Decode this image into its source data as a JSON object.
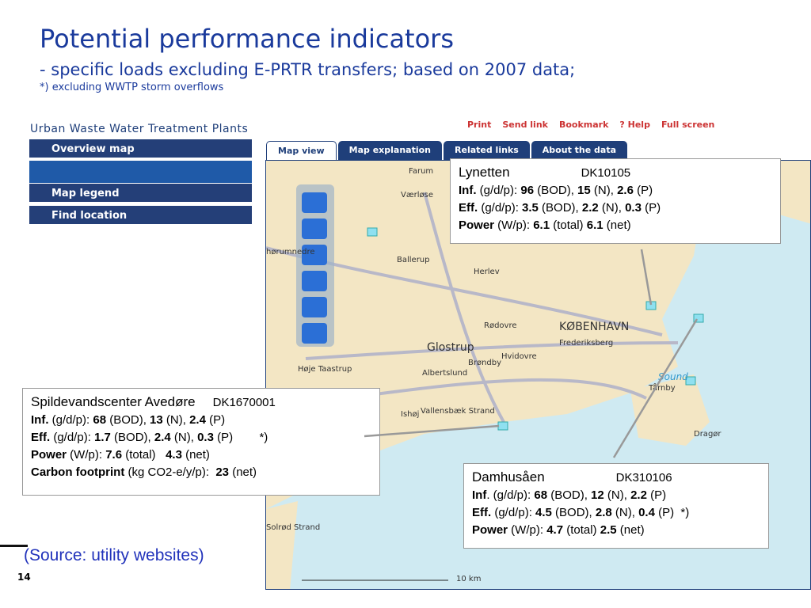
{
  "slide": {
    "title": "Potential performance indicators",
    "subtitle": "- specific loads excluding E-PRTR transfers;  based on 2007 data;",
    "note": "*) excluding WWTP storm overflows",
    "source": "(Source: utility websites)",
    "page": "14"
  },
  "app": {
    "title": "Urban Waste Water Treatment Plants",
    "toolbar": [
      "Print",
      "Send link",
      "Bookmark",
      "? Help",
      "Full screen"
    ],
    "panels": [
      "Overview map",
      "Map legend",
      "Find location"
    ],
    "tabs": [
      "Map view",
      "Map explanation",
      "Related links",
      "About the data"
    ],
    "scale": "10 km"
  },
  "map": {
    "labels": [
      "Farum",
      "Værløse",
      "hørumnedre",
      "Ballerup",
      "Herlev",
      "Rødovre",
      "KØBENHAVN",
      "Frederiksberg",
      "Glostrup",
      "Brøndby",
      "Hvidovre",
      "Albertslund",
      "Høje Taastrup",
      "Ishøj",
      "Vallensbæk Strand",
      "Tårnby",
      "Sound",
      "Dragør",
      "Solrød Strand"
    ]
  },
  "callouts": [
    {
      "name": "Lynetten",
      "code": "DK10105",
      "lines": [
        [
          {
            "bold": "Inf."
          },
          {
            "text": " (g/d/p): "
          },
          {
            "bold": "96"
          },
          {
            "text": " (BOD), "
          },
          {
            "bold": "15"
          },
          {
            "text": " (N), "
          },
          {
            "bold": "2.6"
          },
          {
            "text": " (P)"
          }
        ],
        [
          {
            "bold": "Eff."
          },
          {
            "text": " (g/d/p): "
          },
          {
            "bold": "3.5"
          },
          {
            "text": " (BOD), "
          },
          {
            "bold": "2.2"
          },
          {
            "text": " (N), "
          },
          {
            "bold": "0.3"
          },
          {
            "text": " (P)"
          }
        ],
        [
          {
            "bold": "Power"
          },
          {
            "text": " (W/p): "
          },
          {
            "bold": "6.1"
          },
          {
            "text": " (total) "
          },
          {
            "bold": "6.1"
          },
          {
            "text": " (net)"
          }
        ]
      ]
    },
    {
      "name": "Spildevandscenter Avedøre",
      "code": "DK1670001",
      "lines": [
        [
          {
            "bold": "Inf."
          },
          {
            "text": " (g/d/p): "
          },
          {
            "bold": "68"
          },
          {
            "text": " (BOD), "
          },
          {
            "bold": "13"
          },
          {
            "text": " (N), "
          },
          {
            "bold": "2.4"
          },
          {
            "text": " (P)"
          }
        ],
        [
          {
            "bold": "Eff."
          },
          {
            "text": " (g/d/p): "
          },
          {
            "bold": "1.7"
          },
          {
            "text": " (BOD), "
          },
          {
            "bold": "2.4"
          },
          {
            "text": " (N), "
          },
          {
            "bold": "0.3"
          },
          {
            "text": " (P)        *)"
          }
        ],
        [
          {
            "bold": "Power"
          },
          {
            "text": " (W/p): "
          },
          {
            "bold": "7.6"
          },
          {
            "text": " (total)   "
          },
          {
            "bold": "4.3"
          },
          {
            "text": " (net)"
          }
        ],
        [
          {
            "bold": "Carbon footprint"
          },
          {
            "text": " (kg CO2-e/y/p):  "
          },
          {
            "bold": "23"
          },
          {
            "text": " (net)"
          }
        ]
      ]
    },
    {
      "name": "Damhusåen",
      "code": "DK310106",
      "lines": [
        [
          {
            "bold": "Inf"
          },
          {
            "text": ". (g/d/p): "
          },
          {
            "bold": "68"
          },
          {
            "text": " (BOD), "
          },
          {
            "bold": "12"
          },
          {
            "text": " (N), "
          },
          {
            "bold": "2.2"
          },
          {
            "text": " (P)"
          }
        ],
        [
          {
            "bold": "Eff."
          },
          {
            "text": " (g/d/p): "
          },
          {
            "bold": "4.5"
          },
          {
            "text": " (BOD), "
          },
          {
            "bold": "2.8"
          },
          {
            "text": " (N), "
          },
          {
            "bold": "0.4"
          },
          {
            "text": " (P)  *)"
          }
        ],
        [
          {
            "bold": "Power"
          },
          {
            "text": " (W/p): "
          },
          {
            "bold": "4.7"
          },
          {
            "text": " (total) "
          },
          {
            "bold": "2.5"
          },
          {
            "text": " (net)"
          }
        ]
      ]
    }
  ]
}
